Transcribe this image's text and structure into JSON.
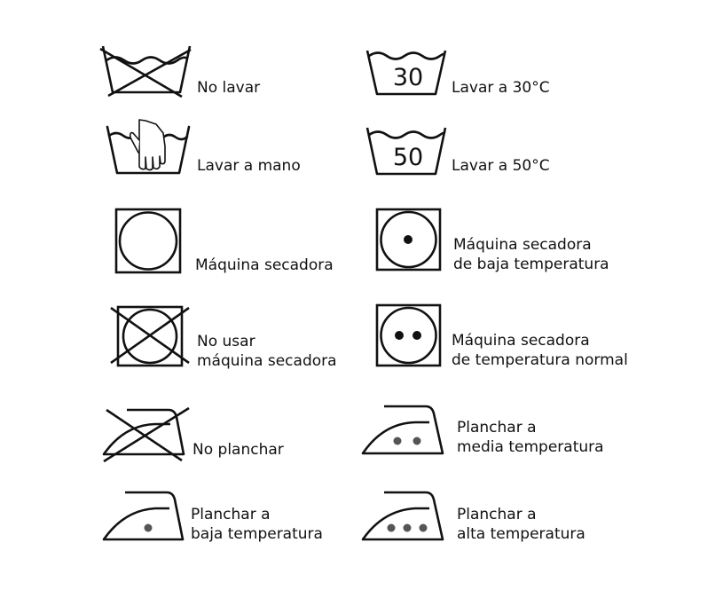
{
  "symbols": {
    "no_wash": {
      "label": "No lavar"
    },
    "wash_30": {
      "number": "30",
      "label": "Lavar a 30°C"
    },
    "hand_wash": {
      "label": "Lavar a mano"
    },
    "wash_50": {
      "number": "50",
      "label": "Lavar a 50°C"
    },
    "tumble_dry": {
      "label": "Máquina secadora"
    },
    "tumble_dry_low": {
      "line1": "Máquina secadora",
      "line2": "de baja temperatura"
    },
    "no_tumble_dry": {
      "line1": "No usar",
      "line2": "máquina secadora"
    },
    "tumble_dry_normal": {
      "line1": "Máquina secadora",
      "line2": "de temperatura normal"
    },
    "no_iron": {
      "label": "No planchar"
    },
    "iron_medium": {
      "line1": "Planchar a",
      "line2": "media temperatura"
    },
    "iron_low": {
      "line1": "Planchar a",
      "line2": "baja temperatura"
    },
    "iron_high": {
      "line1": "Planchar a",
      "line2": "alta temperatura"
    }
  },
  "colors": {
    "ink": "#111111",
    "dot_fill": "#555555"
  }
}
